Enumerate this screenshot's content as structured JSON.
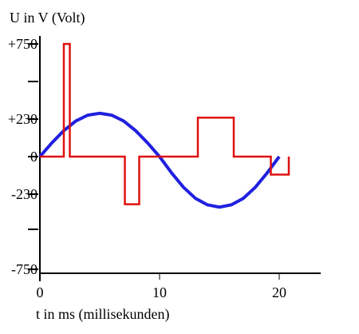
{
  "chart_data": {
    "type": "line",
    "title": "U in V (Volt)",
    "x_label": "t in ms (millisekunden)",
    "xlim": [
      0,
      23.4
    ],
    "xticks": [
      0,
      10,
      20
    ],
    "ylim": [
      -750,
      750
    ],
    "yticks": [
      {
        "value": 750,
        "label": "+750"
      },
      {
        "value": 230,
        "label": "+230"
      },
      0,
      -230,
      -750
    ],
    "series": [
      {
        "color": "#2020e0",
        "x": [
          0,
          1,
          2,
          3,
          4,
          5,
          6,
          7,
          8,
          9,
          10,
          11,
          12,
          13,
          14,
          15,
          16,
          17,
          18,
          19,
          20
        ],
        "values": [
          0,
          84,
          159,
          218,
          257,
          270,
          257,
          218,
          159,
          84,
          0,
          -99,
          -188,
          -259,
          -304,
          -320,
          -304,
          -259,
          -188,
          -99,
          0
        ]
      },
      {
        "color": "#e01010",
        "x": [
          0,
          2.0,
          2.0,
          2.5,
          2.5,
          7.1,
          7.1,
          8.3,
          8.3,
          13.2,
          13.2,
          16.2,
          16.2,
          19.3,
          19.3,
          20.8,
          20.8
        ],
        "values": [
          0,
          0,
          750,
          750,
          0,
          0,
          -300,
          -300,
          0,
          0,
          240,
          240,
          0,
          0,
          -110,
          -110,
          0
        ]
      }
    ]
  }
}
